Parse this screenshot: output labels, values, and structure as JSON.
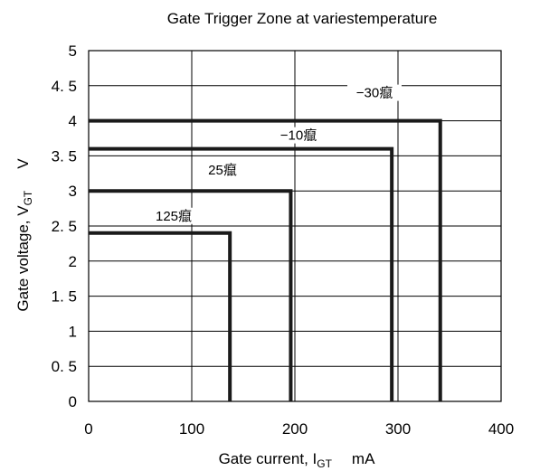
{
  "chart_data": {
    "type": "line",
    "title": "Gate Trigger  Zone at variestemperature",
    "xlabel": {
      "main": "Gate current, I",
      "sub": "GT",
      "unit": "mA"
    },
    "ylabel": {
      "main": "Gate voltage, V",
      "sub": "GT",
      "unit": "V"
    },
    "xlim": [
      0,
      400
    ],
    "ylim": [
      0,
      5
    ],
    "xticks": [
      0,
      100,
      200,
      300,
      400
    ],
    "xtick_labels": [
      "0",
      "100",
      "200",
      "300",
      "400"
    ],
    "yticks": [
      0,
      0.5,
      1,
      1.5,
      2,
      2.5,
      3,
      3.5,
      4,
      4.5,
      5
    ],
    "ytick_labels": [
      "0",
      "0. 5",
      "1",
      "1. 5",
      "2",
      "2. 5",
      "3",
      "3. 5",
      "4",
      "4. 5",
      "5"
    ],
    "grid": true,
    "legend": "none",
    "series": [
      {
        "label": "−30癙",
        "x": [
          0,
          341,
          341
        ],
        "y": [
          4.0,
          4.0,
          0
        ]
      },
      {
        "label": "−10癙",
        "x": [
          0,
          294,
          294
        ],
        "y": [
          3.6,
          3.6,
          0
        ]
      },
      {
        "label": "25癙",
        "x": [
          0,
          196,
          196
        ],
        "y": [
          3.0,
          3.0,
          0
        ]
      },
      {
        "label": "125癙",
        "x": [
          0,
          137,
          137
        ],
        "y": [
          2.4,
          2.4,
          0
        ]
      }
    ]
  }
}
